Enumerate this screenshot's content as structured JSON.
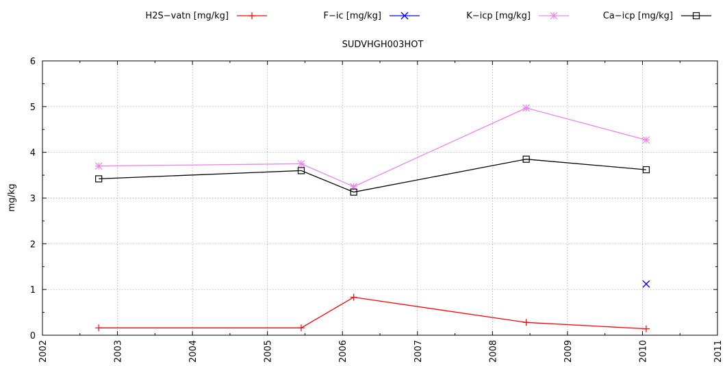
{
  "chart_data": {
    "type": "line",
    "title": "SUDVHGH003HOT",
    "xlabel": "",
    "ylabel": "mg/kg",
    "xlim": [
      2002,
      2011
    ],
    "ylim": [
      0,
      6
    ],
    "x_ticks": [
      "2002",
      "2003",
      "2004",
      "2005",
      "2006",
      "2007",
      "2008",
      "2009",
      "2010",
      "2011"
    ],
    "y_ticks": [
      "0",
      "1",
      "2",
      "3",
      "4",
      "5",
      "6"
    ],
    "grid": true,
    "legend_position": "top",
    "series": [
      {
        "name": "H2S−vatn [mg/kg]",
        "color": "#ff0000",
        "marker": "plus",
        "line": true,
        "points": [
          [
            2002.75,
            0.16
          ],
          [
            2005.45,
            0.16
          ],
          [
            2006.15,
            0.83
          ],
          [
            2008.45,
            0.28
          ],
          [
            2010.05,
            0.14
          ]
        ]
      },
      {
        "name": "F−ic [mg/kg]",
        "color": "#0000ff",
        "marker": "x",
        "line": true,
        "points": [
          [
            2010.05,
            1.12
          ]
        ]
      },
      {
        "name": "K−icp [mg/kg]",
        "color": "#ee82ee",
        "marker": "star",
        "line": true,
        "points": [
          [
            2002.75,
            3.7
          ],
          [
            2005.45,
            3.75
          ],
          [
            2006.15,
            3.25
          ],
          [
            2008.45,
            4.97
          ],
          [
            2010.05,
            4.27
          ]
        ]
      },
      {
        "name": "Ca−icp [mg/kg]",
        "color": "#000000",
        "marker": "square",
        "line": true,
        "points": [
          [
            2002.75,
            3.42
          ],
          [
            2005.45,
            3.6
          ],
          [
            2006.15,
            3.13
          ],
          [
            2008.45,
            3.85
          ],
          [
            2010.05,
            3.62
          ]
        ]
      }
    ]
  }
}
